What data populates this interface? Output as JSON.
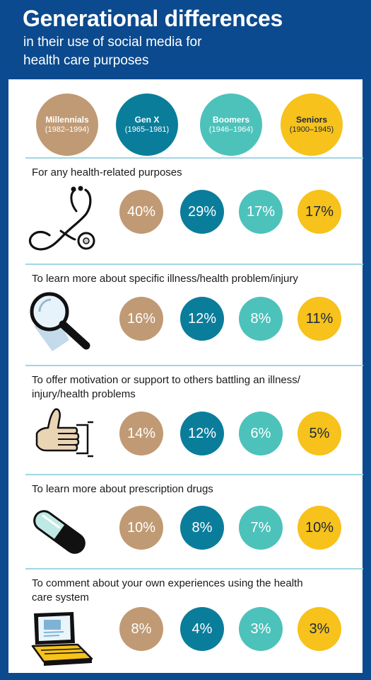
{
  "header": {
    "title": "Generational differences",
    "subtitle_line1": "in their use of social media for",
    "subtitle_line2": "health care purposes"
  },
  "colors": {
    "header_bg": "#0b4a8e",
    "millennials": "#c09a74",
    "gen_x": "#0a7d9b",
    "boomers": "#4cc2bb",
    "seniors": "#f6c21b",
    "divider": "#9fd6e5"
  },
  "chart_data": {
    "type": "table",
    "title": "Generational differences",
    "subtitle": "in their use of social media for health care purposes",
    "unit": "%",
    "series": [
      {
        "name": "Millennials",
        "years": "(1982–1994)",
        "values": [
          40,
          16,
          14,
          10,
          8
        ]
      },
      {
        "name": "Gen X",
        "years": "(1965–1981)",
        "values": [
          29,
          12,
          12,
          8,
          4
        ]
      },
      {
        "name": "Boomers",
        "years": "(1946–1964)",
        "values": [
          17,
          8,
          6,
          7,
          3
        ]
      },
      {
        "name": "Seniors",
        "years": "(1900–1945)",
        "values": [
          17,
          11,
          5,
          10,
          3
        ]
      }
    ],
    "rows": [
      {
        "line1": "For any health-related purposes",
        "line2": "",
        "icon": "stethoscope-icon",
        "labels": [
          "40%",
          "29%",
          "17%",
          "17%"
        ]
      },
      {
        "line1": "To learn more about specific illness/health problem/injury",
        "line2": "",
        "icon": "magnifying-glass-icon",
        "labels": [
          "16%",
          "12%",
          "8%",
          "11%"
        ]
      },
      {
        "line1": "To offer motivation or support to others battling an illness/",
        "line2": "injury/health problems",
        "icon": "thumbs-up-icon",
        "labels": [
          "14%",
          "12%",
          "6%",
          "5%"
        ]
      },
      {
        "line1": "To learn more about prescription drugs",
        "line2": "",
        "icon": "pill-capsule-icon",
        "labels": [
          "10%",
          "8%",
          "7%",
          "10%"
        ]
      },
      {
        "line1": "To comment about your own experiences using the health",
        "line2": "care system",
        "icon": "laptop-icon",
        "labels": [
          "8%",
          "4%",
          "3%",
          "3%"
        ]
      }
    ]
  }
}
